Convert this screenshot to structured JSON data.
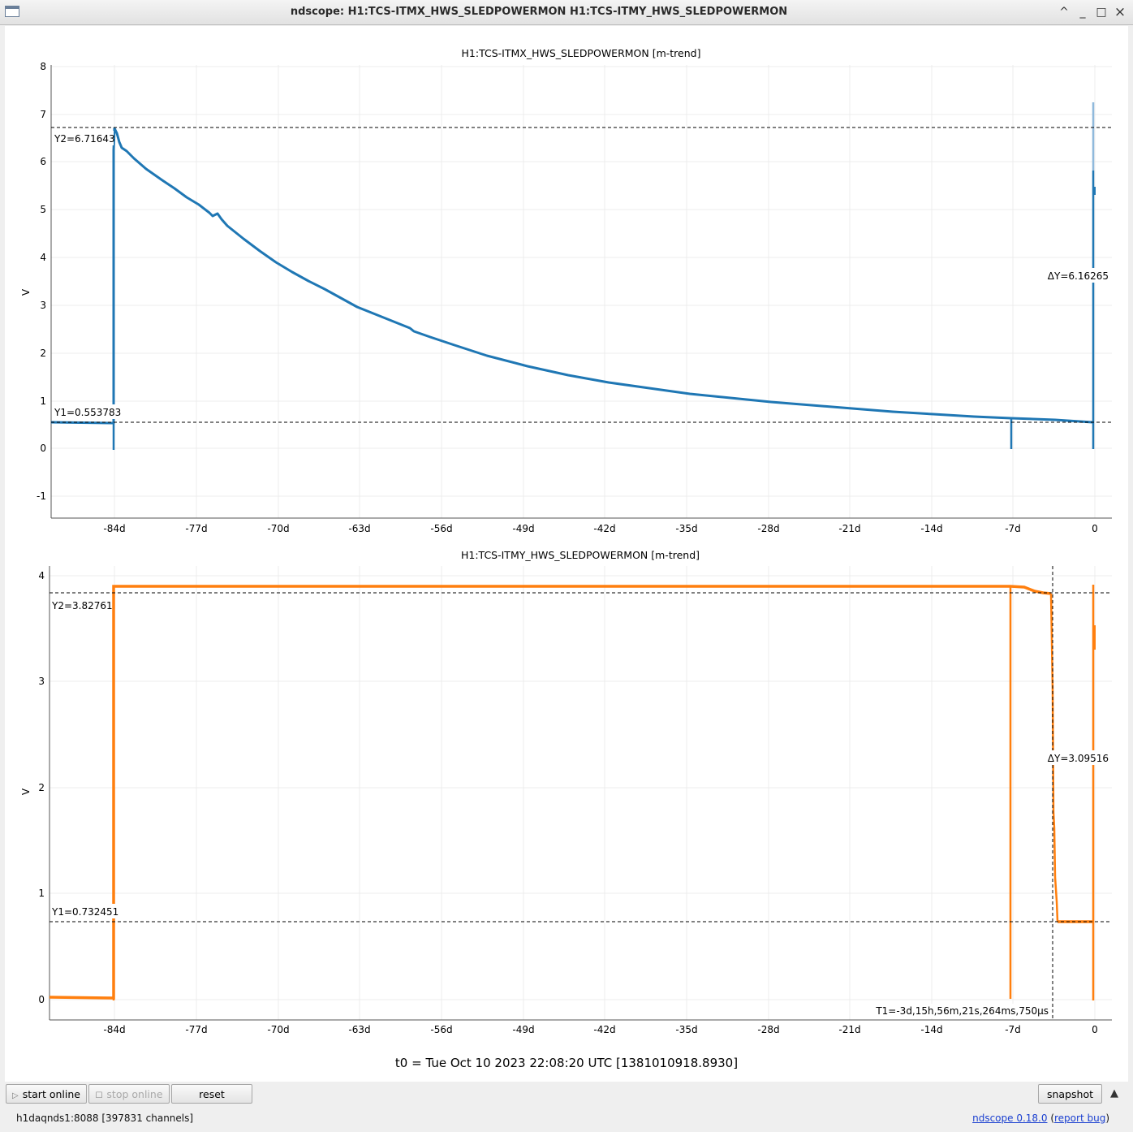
{
  "window": {
    "title": "ndscope: H1:TCS-ITMX_HWS_SLEDPOWERMON H1:TCS-ITMY_HWS_SLEDPOWERMON",
    "buttons": [
      "^",
      "_",
      "□",
      "×"
    ]
  },
  "plots": [
    {
      "title": "H1:TCS-ITMX_HWS_SLEDPOWERMON [m-trend]",
      "ylabel": "V",
      "yticks": [
        "8",
        "7",
        "6",
        "5",
        "4",
        "3",
        "2",
        "1",
        "0",
        "-1"
      ],
      "xticks": [
        "-84d",
        "-77d",
        "-70d",
        "-63d",
        "-56d",
        "-49d",
        "-42d",
        "-35d",
        "-28d",
        "-21d",
        "-14d",
        "-7d",
        "0"
      ],
      "cursor_y2": "Y2=6.71643",
      "cursor_y1": "Y1=0.553783",
      "delta_y": "ΔY=6.16265",
      "color": "#1f77b4"
    },
    {
      "title": "H1:TCS-ITMY_HWS_SLEDPOWERMON [m-trend]",
      "ylabel": "V",
      "yticks": [
        "4",
        "3",
        "2",
        "1",
        "0"
      ],
      "xticks": [
        "-84d",
        "-77d",
        "-70d",
        "-63d",
        "-56d",
        "-49d",
        "-42d",
        "-35d",
        "-28d",
        "-21d",
        "-14d",
        "-7d",
        "0"
      ],
      "cursor_y2": "Y2=3.82761",
      "cursor_y1": "Y1=0.732451",
      "delta_y": "ΔY=3.09516",
      "cursor_t1": "T1=-3d,15h,56m,21s,264ms,750μs",
      "color": "#ff7f0e"
    }
  ],
  "t0": "t0 = Tue Oct 10 2023 22:08:20 UTC [1381010918.8930]",
  "controls": {
    "start_online": "start online",
    "stop_online": "stop online",
    "reset": "reset",
    "snapshot": "snapshot"
  },
  "status": "h1daqnds1:8088  [397831 channels]",
  "version": {
    "link": "ndscope 0.18.0",
    "open": " (",
    "bug": "report bug",
    "close": ")"
  }
}
